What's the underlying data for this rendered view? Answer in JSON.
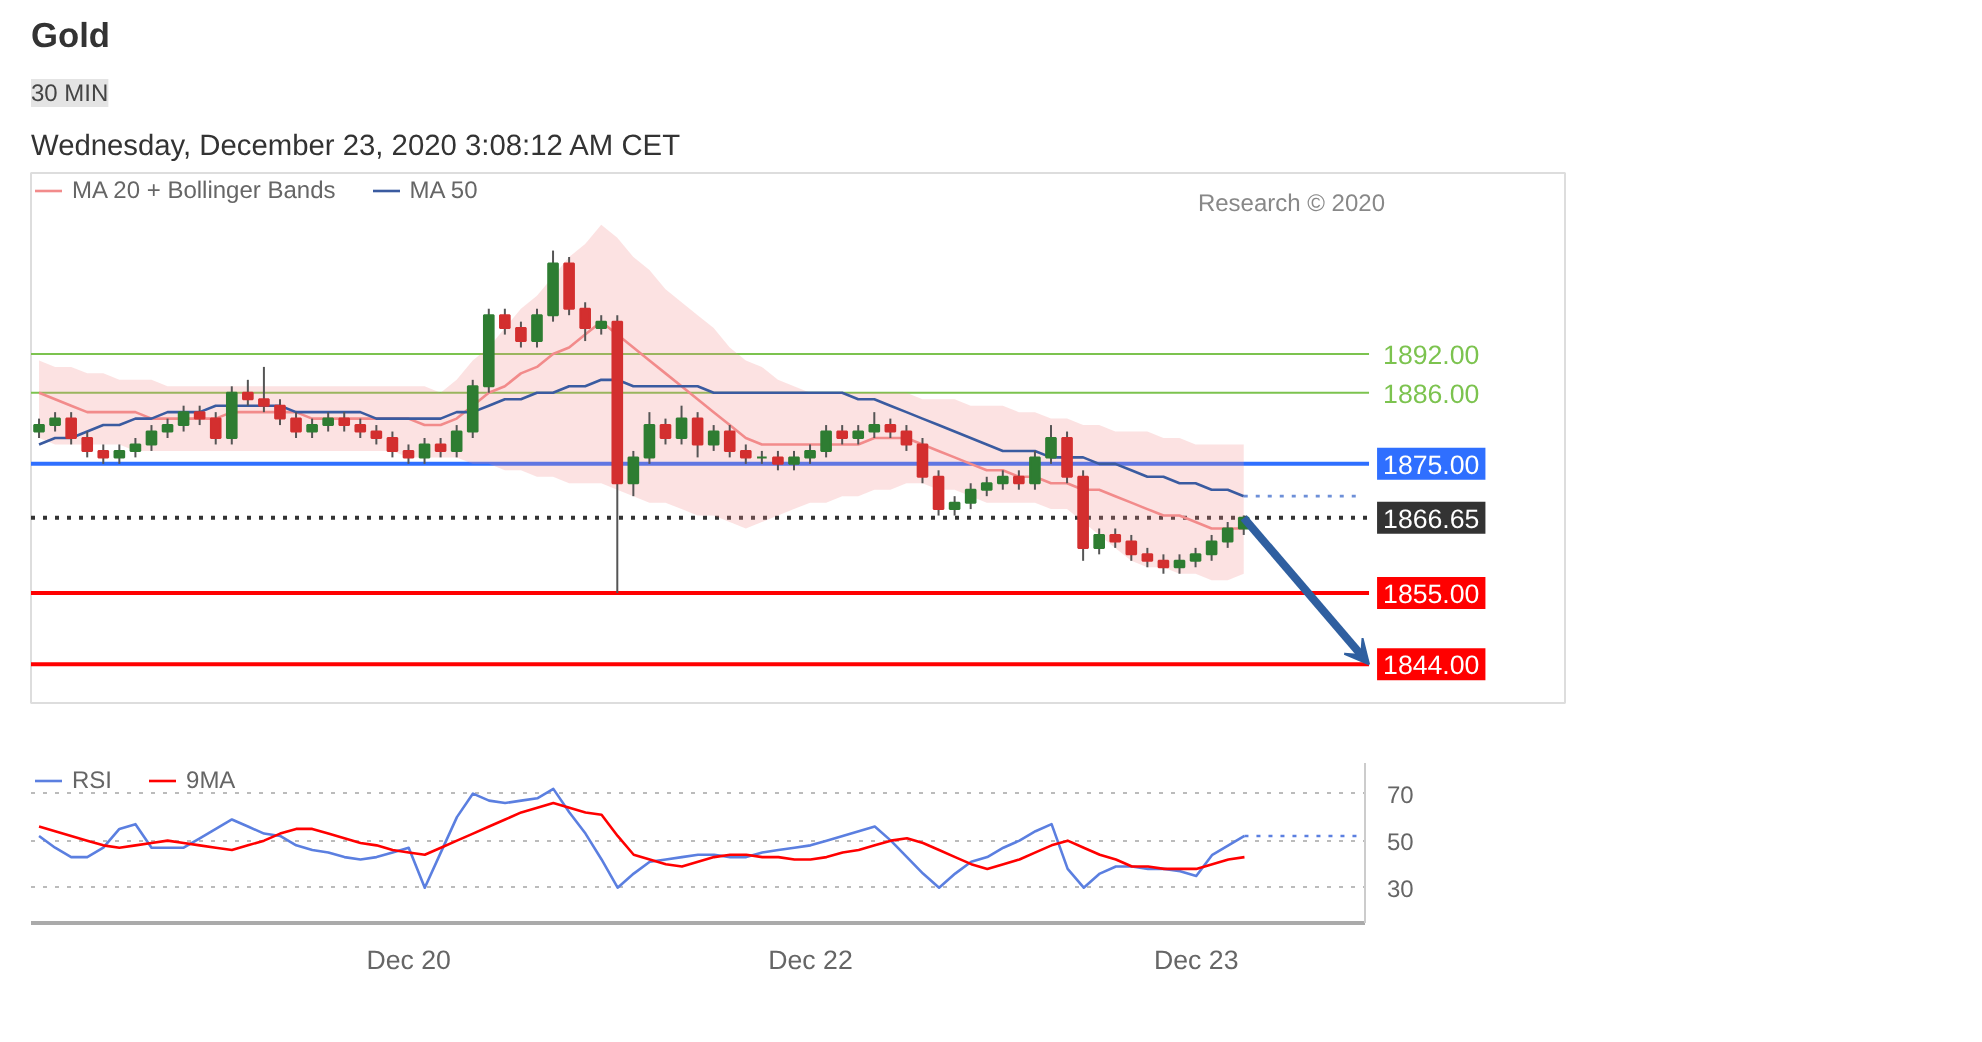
{
  "chart_data": [
    {
      "type": "candlestick",
      "title": "Gold",
      "subtitle": "Wednesday, December 23, 2020 3:08:12 AM CET",
      "annotations": [
        "30 MIN",
        "Research © 2020"
      ],
      "categories": [
        null,
        null,
        null,
        null,
        null,
        null,
        null,
        null,
        null,
        null,
        null,
        null,
        null,
        null,
        null,
        null,
        null,
        null,
        null,
        null,
        null,
        null,
        null,
        null,
        null,
        null,
        null,
        null,
        null,
        null,
        null,
        null,
        null,
        null,
        null,
        null,
        null,
        null,
        null,
        null,
        null,
        null,
        null,
        null,
        null,
        null,
        null,
        null,
        null,
        null,
        null,
        null,
        null,
        null,
        null,
        null,
        null,
        null,
        null,
        null,
        null,
        null,
        null,
        null,
        null,
        null,
        null,
        null,
        null,
        null,
        null,
        null,
        null,
        null,
        null,
        null,
        null,
        null,
        null,
        null,
        null,
        null,
        null
      ],
      "ohlc": [
        [
          1880,
          1882,
          1879,
          1881
        ],
        [
          1881,
          1883,
          1880,
          1882
        ],
        [
          1882,
          1883,
          1878,
          1879
        ],
        [
          1879,
          1880,
          1876,
          1877
        ],
        [
          1877,
          1878,
          1875,
          1876
        ],
        [
          1876,
          1878,
          1875,
          1877
        ],
        [
          1877,
          1879,
          1876,
          1878
        ],
        [
          1878,
          1881,
          1877,
          1880
        ],
        [
          1880,
          1882,
          1879,
          1881
        ],
        [
          1881,
          1884,
          1880,
          1883
        ],
        [
          1883,
          1884,
          1881,
          1882
        ],
        [
          1882,
          1883,
          1878,
          1879
        ],
        [
          1879,
          1887,
          1878,
          1886
        ],
        [
          1886,
          1888,
          1884,
          1885
        ],
        [
          1885,
          1890,
          1883,
          1884
        ],
        [
          1884,
          1885,
          1881,
          1882
        ],
        [
          1882,
          1883,
          1879,
          1880
        ],
        [
          1880,
          1882,
          1879,
          1881
        ],
        [
          1881,
          1883,
          1880,
          1882
        ],
        [
          1882,
          1883,
          1880,
          1881
        ],
        [
          1881,
          1882,
          1879,
          1880
        ],
        [
          1880,
          1881,
          1878,
          1879
        ],
        [
          1879,
          1880,
          1876,
          1877
        ],
        [
          1877,
          1878,
          1875,
          1876
        ],
        [
          1876,
          1879,
          1875,
          1878
        ],
        [
          1878,
          1879,
          1876,
          1877
        ],
        [
          1877,
          1881,
          1876,
          1880
        ],
        [
          1880,
          1888,
          1879,
          1887
        ],
        [
          1887,
          1899,
          1886,
          1898
        ],
        [
          1898,
          1899,
          1895,
          1896
        ],
        [
          1896,
          1897,
          1893,
          1894
        ],
        [
          1894,
          1899,
          1893,
          1898
        ],
        [
          1898,
          1908,
          1897,
          1906
        ],
        [
          1906,
          1907,
          1898,
          1899
        ],
        [
          1899,
          1900,
          1894,
          1896
        ],
        [
          1896,
          1898,
          1895,
          1897
        ],
        [
          1897,
          1898,
          1855,
          1872
        ],
        [
          1872,
          1877,
          1870,
          1876
        ],
        [
          1876,
          1883,
          1875,
          1881
        ],
        [
          1881,
          1882,
          1878,
          1879
        ],
        [
          1879,
          1884,
          1878,
          1882
        ],
        [
          1882,
          1883,
          1876,
          1878
        ],
        [
          1878,
          1881,
          1877,
          1880
        ],
        [
          1880,
          1881,
          1876,
          1877
        ],
        [
          1877,
          1878,
          1875,
          1876
        ],
        [
          1876,
          1877,
          1875,
          1876
        ],
        [
          1876,
          1877,
          1874,
          1875
        ],
        [
          1875,
          1877,
          1874,
          1876
        ],
        [
          1876,
          1878,
          1875,
          1877
        ],
        [
          1877,
          1881,
          1876,
          1880
        ],
        [
          1880,
          1881,
          1878,
          1879
        ],
        [
          1879,
          1881,
          1878,
          1880
        ],
        [
          1880,
          1883,
          1879,
          1881
        ],
        [
          1881,
          1882,
          1879,
          1880
        ],
        [
          1880,
          1881,
          1877,
          1878
        ],
        [
          1878,
          1879,
          1872,
          1873
        ],
        [
          1873,
          1874,
          1867,
          1868
        ],
        [
          1868,
          1870,
          1867,
          1869
        ],
        [
          1869,
          1872,
          1868,
          1871
        ],
        [
          1871,
          1873,
          1870,
          1872
        ],
        [
          1872,
          1874,
          1871,
          1873
        ],
        [
          1873,
          1874,
          1871,
          1872
        ],
        [
          1872,
          1877,
          1871,
          1876
        ],
        [
          1876,
          1881,
          1875,
          1879
        ],
        [
          1879,
          1880,
          1872,
          1873
        ],
        [
          1873,
          1874,
          1860,
          1862
        ],
        [
          1862,
          1865,
          1861,
          1864
        ],
        [
          1864,
          1865,
          1862,
          1863
        ],
        [
          1863,
          1864,
          1860,
          1861
        ],
        [
          1861,
          1862,
          1859,
          1860
        ],
        [
          1860,
          1861,
          1858,
          1859
        ],
        [
          1859,
          1861,
          1858,
          1860
        ],
        [
          1860,
          1862,
          1859,
          1861
        ],
        [
          1861,
          1864,
          1860,
          1863
        ],
        [
          1863,
          1866,
          1862,
          1865
        ],
        [
          1865,
          1867,
          1864,
          1866.65
        ],
        null,
        null,
        null,
        null,
        null,
        null,
        null
      ],
      "series": [
        {
          "name": "MA 20 + Bollinger Bands",
          "type": "line",
          "color": "#f28b8b",
          "values": [
            1886,
            1885,
            1884,
            1883,
            1883,
            1883,
            1883,
            1882,
            1882,
            1882,
            1882,
            1882,
            1883,
            1883,
            1883,
            1883,
            1883,
            1882,
            1882,
            1882,
            1882,
            1882,
            1882,
            1882,
            1881,
            1881,
            1882,
            1884,
            1886,
            1887,
            1889,
            1890,
            1892,
            1893,
            1895,
            1897,
            1895,
            1893,
            1891,
            1889,
            1887,
            1885,
            1883,
            1881,
            1879,
            1878,
            1878,
            1878,
            1878,
            1878,
            1878,
            1878,
            1879,
            1879,
            1879,
            1878,
            1877,
            1876,
            1875,
            1874,
            1874,
            1873,
            1873,
            1872,
            1872,
            1871,
            1871,
            1870,
            1869,
            1868,
            1867,
            1867,
            1866,
            1865,
            1865,
            1865,
            null,
            null,
            null,
            null,
            null,
            null,
            null
          ],
          "lower": [
            1879,
            1878,
            1878,
            1878,
            1878,
            1878,
            1877,
            1877,
            1877,
            1877,
            1877,
            1877,
            1877,
            1877,
            1877,
            1877,
            1877,
            1877,
            1877,
            1877,
            1877,
            1877,
            1877,
            1876,
            1876,
            1876,
            1876,
            1875,
            1875,
            1874,
            1874,
            1873,
            1873,
            1872,
            1872,
            1872,
            1871,
            1870,
            1869,
            1869,
            1868,
            1867,
            1867,
            1866,
            1865,
            1866,
            1867,
            1868,
            1869,
            1869,
            1870,
            1870,
            1871,
            1871,
            1872,
            1872,
            1871,
            1871,
            1870,
            1869,
            1869,
            1869,
            1869,
            1868,
            1868,
            1866,
            1864,
            1862,
            1860,
            1859,
            1859,
            1858,
            1858,
            1857,
            1857,
            1858,
            null,
            null,
            null,
            null,
            null,
            null,
            null
          ],
          "upper": [
            1891,
            1890,
            1890,
            1889,
            1889,
            1888,
            1888,
            1888,
            1887,
            1887,
            1887,
            1887,
            1887,
            1887,
            1887,
            1887,
            1887,
            1887,
            1887,
            1887,
            1887,
            1887,
            1887,
            1887,
            1887,
            1886,
            1888,
            1891,
            1893,
            1896,
            1899,
            1901,
            1904,
            1907,
            1909,
            1912,
            1910,
            1907,
            1905,
            1902,
            1900,
            1898,
            1896,
            1893,
            1891,
            1890,
            1888,
            1887,
            1886,
            1886,
            1886,
            1886,
            1886,
            1886,
            1886,
            1885,
            1885,
            1885,
            1884,
            1884,
            1884,
            1883,
            1883,
            1882,
            1882,
            1881,
            1881,
            1880,
            1880,
            1880,
            1879,
            1879,
            1878,
            1878,
            1878,
            1878,
            null,
            null,
            null,
            null,
            null,
            null,
            null
          ]
        },
        {
          "name": "MA 50",
          "type": "line",
          "color": "#3a5ba0",
          "values": [
            1878,
            1879,
            1879,
            1880,
            1881,
            1881,
            1882,
            1882,
            1883,
            1883,
            1883,
            1884,
            1884,
            1884,
            1884,
            1884,
            1883,
            1883,
            1883,
            1883,
            1883,
            1882,
            1882,
            1882,
            1882,
            1882,
            1883,
            1883,
            1884,
            1885,
            1885,
            1886,
            1886,
            1887,
            1887,
            1888,
            1888,
            1887,
            1887,
            1887,
            1887,
            1887,
            1886,
            1886,
            1886,
            1886,
            1886,
            1886,
            1886,
            1886,
            1886,
            1885,
            1885,
            1884,
            1883,
            1882,
            1881,
            1880,
            1879,
            1878,
            1877,
            1877,
            1877,
            1876,
            1876,
            1876,
            1875,
            1875,
            1874,
            1873,
            1873,
            1872,
            1872,
            1871,
            1871,
            1870,
            null,
            null,
            null,
            null,
            null,
            null,
            null
          ]
        },
        {
          "type": "line",
          "color": "#6d8fd8",
          "line_style": "dotted",
          "values": [
            null,
            null,
            null,
            null,
            null,
            null,
            null,
            null,
            null,
            null,
            null,
            null,
            null,
            null,
            null,
            null,
            null,
            null,
            null,
            null,
            null,
            null,
            null,
            null,
            null,
            null,
            null,
            null,
            null,
            null,
            null,
            null,
            null,
            null,
            null,
            null,
            null,
            null,
            null,
            null,
            null,
            null,
            null,
            null,
            null,
            null,
            null,
            null,
            null,
            null,
            null,
            null,
            null,
            null,
            null,
            null,
            null,
            null,
            null,
            null,
            null,
            null,
            null,
            null,
            null,
            null,
            null,
            null,
            null,
            null,
            null,
            null,
            null,
            null,
            null,
            1870,
            1870,
            1870,
            1870,
            1870,
            1870,
            1870,
            1870
          ]
        }
      ],
      "ref_lines": [
        {
          "axis": "y",
          "value": 1892,
          "color": "#7cc34f"
        },
        {
          "axis": "y",
          "value": 1886,
          "color": "#7cc34f"
        },
        {
          "axis": "y",
          "value": 1875,
          "color": "#2f6fff"
        },
        {
          "axis": "y",
          "value": 1866.65,
          "color": "#333333",
          "line_style": "dotted"
        },
        {
          "axis": "y",
          "value": 1855,
          "color": "#ff0000"
        },
        {
          "axis": "y",
          "value": 1844,
          "color": "#ff0000"
        }
      ],
      "ylim": [
        1838,
        1920
      ],
      "yticks": [
        {
          "value": 1892,
          "label": "1892.00"
        },
        {
          "value": 1886,
          "label": "1886.00"
        },
        {
          "value": 1875,
          "label": "1875.00"
        },
        {
          "value": 1866.65,
          "label": "1866.65"
        },
        {
          "value": 1855,
          "label": "1855.00"
        },
        {
          "value": 1844,
          "label": "1844.00"
        }
      ],
      "tick_labels": "y",
      "grid": false,
      "legend": "top left"
    },
    {
      "type": "line",
      "categories": [
        null,
        null,
        null,
        null,
        null,
        null,
        null,
        null,
        null,
        null,
        null,
        null,
        null,
        null,
        null,
        null,
        null,
        null,
        null,
        null,
        null,
        null,
        null,
        "Dec 20",
        null,
        null,
        null,
        null,
        null,
        null,
        null,
        null,
        null,
        null,
        null,
        null,
        null,
        null,
        null,
        null,
        null,
        null,
        null,
        null,
        null,
        null,
        null,
        null,
        "Dec 22",
        null,
        null,
        null,
        null,
        null,
        null,
        null,
        null,
        null,
        null,
        null,
        null,
        null,
        null,
        null,
        null,
        null,
        null,
        null,
        null,
        null,
        null,
        null,
        "Dec 23",
        null,
        null,
        null,
        null,
        null,
        null,
        null,
        null,
        null,
        null
      ],
      "series": [
        {
          "name": "RSI",
          "color": "#5b7fe0",
          "values": [
            52,
            47,
            43,
            43,
            47,
            55,
            57,
            47,
            47,
            47,
            51,
            55,
            59,
            56,
            53,
            52,
            48,
            46,
            45,
            43,
            42,
            43,
            45,
            47,
            30,
            45,
            60,
            70,
            67,
            66,
            67,
            68,
            72,
            62,
            53,
            42,
            30,
            36,
            41,
            42,
            43,
            44,
            44,
            43,
            43,
            45,
            46,
            47,
            48,
            50,
            52,
            54,
            56,
            50,
            43,
            36,
            30,
            36,
            41,
            43,
            47,
            50,
            54,
            57,
            38,
            30,
            36,
            39,
            39,
            38,
            38,
            37,
            35,
            44,
            48,
            52,
            null,
            null,
            null,
            null,
            null,
            null,
            null
          ]
        },
        {
          "name": "9MA",
          "color": "#ff0000",
          "values": [
            56,
            54,
            52,
            50,
            48,
            47,
            48,
            49,
            50,
            49,
            48,
            47,
            46,
            48,
            50,
            53,
            55,
            55,
            53,
            51,
            49,
            48,
            46,
            45,
            44,
            47,
            50,
            53,
            56,
            59,
            62,
            64,
            66,
            64,
            62,
            61,
            52,
            44,
            42,
            40,
            39,
            41,
            43,
            44,
            44,
            43,
            43,
            42,
            42,
            43,
            45,
            46,
            48,
            50,
            51,
            49,
            46,
            43,
            40,
            38,
            40,
            42,
            45,
            48,
            50,
            47,
            44,
            42,
            39,
            39,
            38,
            38,
            38,
            40,
            42,
            43,
            null,
            null,
            null,
            null,
            null,
            null,
            null
          ]
        },
        {
          "color": "#5b7fe0",
          "line_style": "dotted",
          "values": [
            null,
            null,
            null,
            null,
            null,
            null,
            null,
            null,
            null,
            null,
            null,
            null,
            null,
            null,
            null,
            null,
            null,
            null,
            null,
            null,
            null,
            null,
            null,
            null,
            null,
            null,
            null,
            null,
            null,
            null,
            null,
            null,
            null,
            null,
            null,
            null,
            null,
            null,
            null,
            null,
            null,
            null,
            null,
            null,
            null,
            null,
            null,
            null,
            null,
            null,
            null,
            null,
            null,
            null,
            null,
            null,
            null,
            null,
            null,
            null,
            null,
            null,
            null,
            null,
            null,
            null,
            null,
            null,
            null,
            null,
            null,
            null,
            null,
            null,
            null,
            52,
            52,
            52,
            52,
            52,
            52,
            52,
            52
          ]
        }
      ],
      "ylim": [
        15,
        83
      ],
      "yticks": [
        30,
        50,
        70
      ],
      "grid": "y",
      "legend": "top left"
    }
  ]
}
